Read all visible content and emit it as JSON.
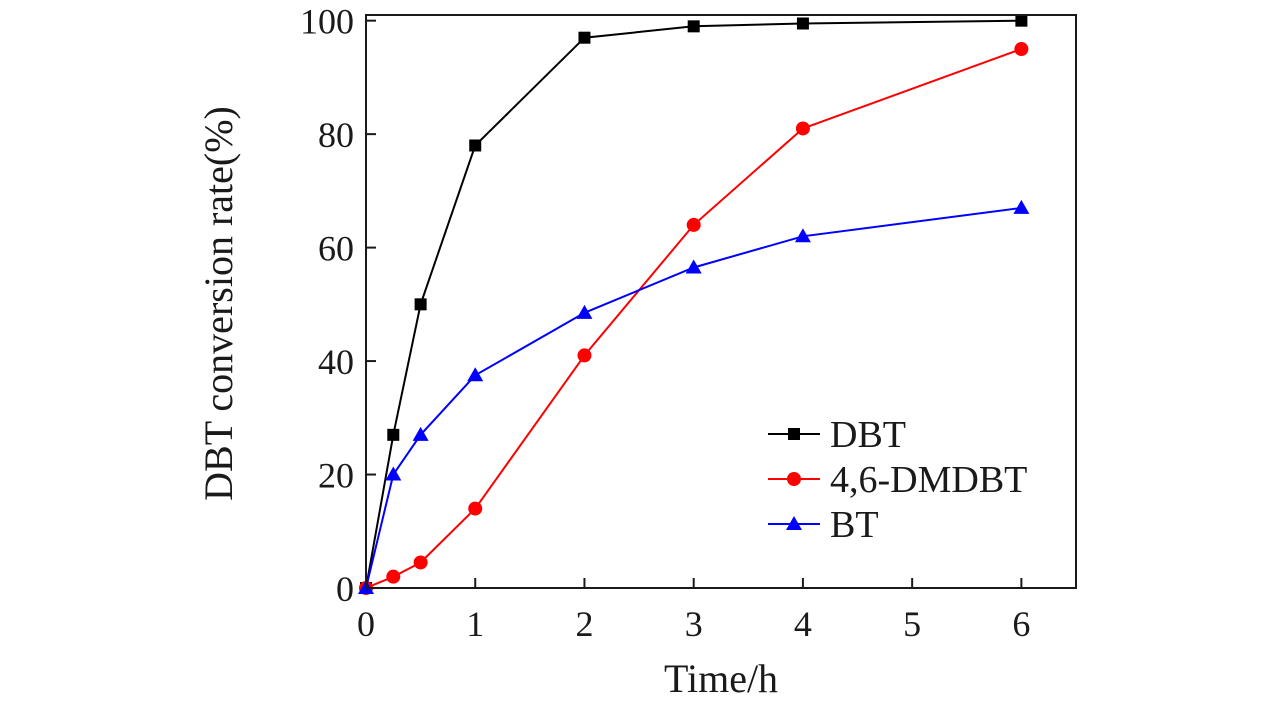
{
  "chart_data": {
    "type": "line",
    "title": "",
    "xlabel": "Time/h",
    "ylabel": "DBT conversion rate(%)",
    "xlim": [
      0,
      6.5
    ],
    "ylim": [
      0,
      101
    ],
    "xticks": [
      0,
      1,
      2,
      3,
      4,
      5,
      6
    ],
    "yticks": [
      0,
      20,
      40,
      60,
      80,
      100
    ],
    "grid": false,
    "legend_position": "bottom-right",
    "series": [
      {
        "name": "DBT",
        "color": "#000000",
        "marker": "square",
        "x": [
          0,
          0.25,
          0.5,
          1,
          2,
          3,
          4,
          6
        ],
        "y": [
          0,
          27,
          50,
          78,
          97,
          99,
          99.5,
          100
        ]
      },
      {
        "name": "4,6-DMDBT",
        "color": "#ff0000",
        "marker": "circle",
        "x": [
          0,
          0.25,
          0.5,
          1,
          2,
          3,
          4,
          6
        ],
        "y": [
          0,
          2,
          4.5,
          14,
          41,
          64,
          81,
          95
        ]
      },
      {
        "name": "BT",
        "color": "#0000ff",
        "marker": "triangle",
        "x": [
          0,
          0.25,
          0.5,
          1,
          2,
          3,
          4,
          6
        ],
        "y": [
          0,
          20,
          27,
          37.5,
          48.5,
          56.5,
          62,
          67
        ]
      }
    ]
  }
}
